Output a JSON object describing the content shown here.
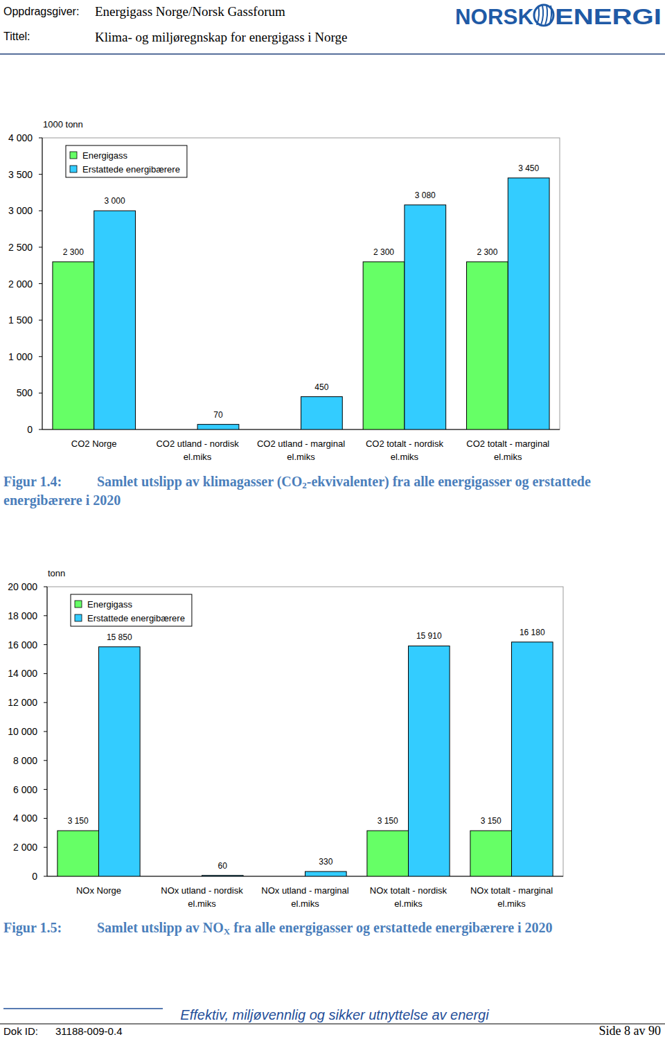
{
  "header": {
    "client_label": "Oppdragsgiver:",
    "client": "Energigass Norge/Norsk Gassforum",
    "title_label": "Tittel:",
    "title": "Klima- og miljøregnskap for energigass i Norge",
    "logo_left": "NORSK",
    "logo_right": "ENERGI"
  },
  "chart_data": [
    {
      "type": "bar",
      "y_label": "1000 tonn",
      "categories": [
        "CO2 Norge",
        "CO2 utland - nordisk el.miks",
        "CO2 utland - marginal el.miks",
        "CO2 totalt - nordisk el.miks",
        "CO2 totalt - marginal el.miks"
      ],
      "series": [
        {
          "name": "Energigass",
          "color": "#66ff66",
          "values": [
            2300,
            null,
            null,
            2300,
            2300
          ],
          "value_labels": [
            "2 300",
            null,
            null,
            "2 300",
            "2 300"
          ]
        },
        {
          "name": "Erstattede energibærere",
          "color": "#33ccff",
          "values": [
            3000,
            70,
            450,
            3080,
            3450
          ],
          "value_labels": [
            "3 000",
            "70",
            "450",
            "3 080",
            "3 450"
          ]
        }
      ],
      "ylim": [
        0,
        4000
      ],
      "yticks": [
        0,
        500,
        {
          "value": 1000,
          "label": "1 000"
        },
        {
          "value": 1500,
          "label": "1 500"
        },
        {
          "value": 2000,
          "label": "2 000"
        },
        {
          "value": 2500,
          "label": "2 500"
        },
        {
          "value": 3000,
          "label": "3 000"
        },
        {
          "value": 3500,
          "label": "3 500"
        },
        {
          "value": 4000,
          "label": "4 000"
        }
      ],
      "grid": false,
      "legend": "top-left",
      "data_labels": true
    },
    {
      "type": "bar",
      "y_label": "tonn",
      "categories": [
        "NOx Norge",
        "NOx utland - nordisk el.miks",
        "NOx utland - marginal el.miks",
        "NOx totalt - nordisk el.miks",
        "NOx totalt - marginal el.miks"
      ],
      "series": [
        {
          "name": "Energigass",
          "color": "#66ff66",
          "values": [
            3150,
            null,
            null,
            3150,
            3150
          ],
          "value_labels": [
            "3 150",
            null,
            null,
            "3 150",
            "3 150"
          ]
        },
        {
          "name": "Erstattede energibærere",
          "color": "#33ccff",
          "values": [
            15850,
            60,
            330,
            15910,
            16180
          ],
          "value_labels": [
            "15 850",
            "60",
            "330",
            "15 910",
            "16 180"
          ]
        }
      ],
      "ylim": [
        0,
        20000
      ],
      "yticks": [
        0,
        {
          "value": 2000,
          "label": "2 000"
        },
        {
          "value": 4000,
          "label": "4 000"
        },
        {
          "value": 6000,
          "label": "6 000"
        },
        {
          "value": 8000,
          "label": "8 000"
        },
        {
          "value": 10000,
          "label": "10 000"
        },
        {
          "value": 12000,
          "label": "12 000"
        },
        {
          "value": 14000,
          "label": "14 000"
        },
        {
          "value": 16000,
          "label": "16 000"
        },
        {
          "value": 18000,
          "label": "18 000"
        },
        {
          "value": 20000,
          "label": "20 000"
        }
      ],
      "grid": false,
      "legend": "top-left",
      "data_labels": true
    }
  ],
  "captions": [
    {
      "label": "Figur 1.4:",
      "text": "Samlet utslipp av klimagasser (CO",
      "subscript": "2",
      "text_after": "-ekvivalenter) fra alle energigasser og erstattede energibærere i 2020"
    },
    {
      "label": "Figur 1.5:",
      "text": "Samlet utslipp av NO",
      "subscript": "X",
      "text_after": " fra alle energigasser og erstattede energibærere i 2020"
    }
  ],
  "footer": {
    "slogan": "Effektiv, miljøvennlig og sikker utnyttelse av energi",
    "doc_label": "Dok ID:",
    "doc_id": "31188-009-0.4",
    "page": "Side 8 av 90"
  }
}
